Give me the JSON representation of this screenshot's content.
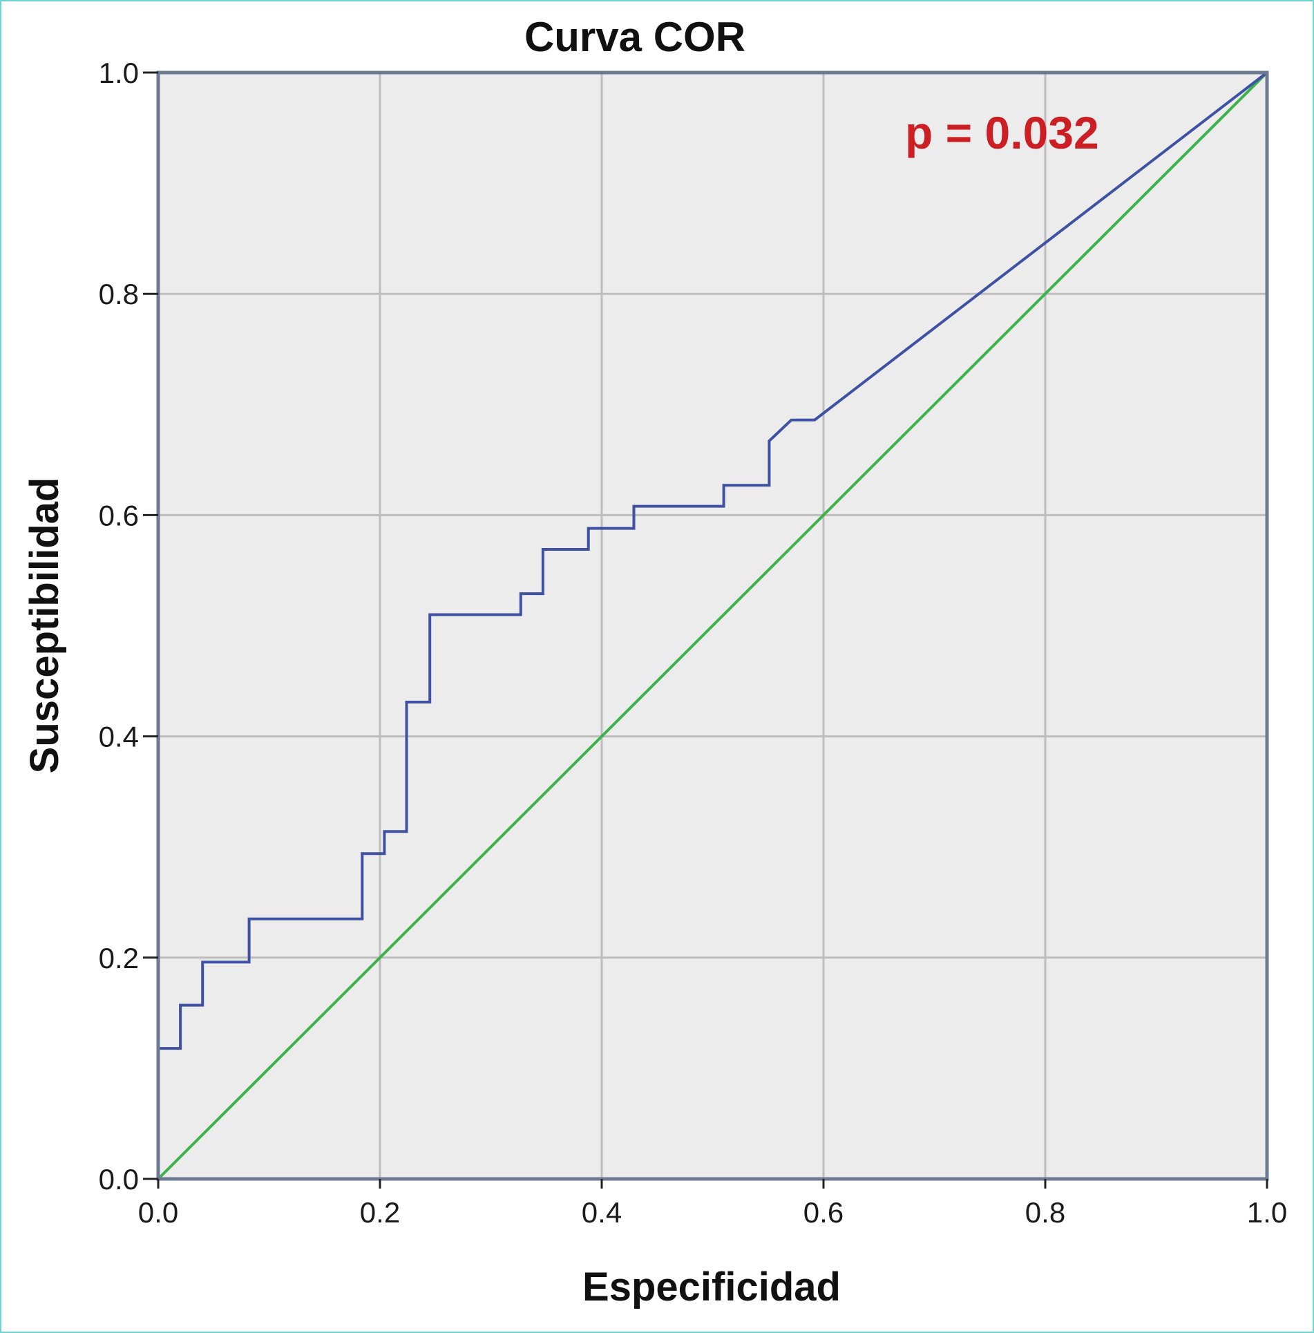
{
  "chart_data": {
    "type": "line",
    "title": "Curva COR",
    "xlabel": "Especificidad",
    "ylabel": "Susceptibilidad",
    "xlim": [
      0.0,
      1.0
    ],
    "ylim": [
      0.0,
      1.0
    ],
    "xticks": [
      "0.0",
      "0.2",
      "0.4",
      "0.6",
      "0.8",
      "1.0"
    ],
    "yticks": [
      "0.0",
      "0.2",
      "0.4",
      "0.6",
      "0.8",
      "1.0"
    ],
    "grid": true,
    "annotation": "p = 0.032",
    "series": [
      {
        "color": "#3f51a3",
        "style": "step",
        "points": [
          [
            0.0,
            0.0
          ],
          [
            0.0,
            0.118
          ],
          [
            0.02,
            0.118
          ],
          [
            0.02,
            0.157
          ],
          [
            0.04,
            0.157
          ],
          [
            0.04,
            0.196
          ],
          [
            0.082,
            0.196
          ],
          [
            0.082,
            0.235
          ],
          [
            0.184,
            0.235
          ],
          [
            0.184,
            0.294
          ],
          [
            0.204,
            0.294
          ],
          [
            0.204,
            0.314
          ],
          [
            0.224,
            0.314
          ],
          [
            0.224,
            0.431
          ],
          [
            0.245,
            0.431
          ],
          [
            0.245,
            0.51
          ],
          [
            0.327,
            0.51
          ],
          [
            0.327,
            0.529
          ],
          [
            0.347,
            0.529
          ],
          [
            0.347,
            0.569
          ],
          [
            0.388,
            0.569
          ],
          [
            0.388,
            0.588
          ],
          [
            0.429,
            0.588
          ],
          [
            0.429,
            0.608
          ],
          [
            0.51,
            0.608
          ],
          [
            0.51,
            0.627
          ],
          [
            0.551,
            0.627
          ],
          [
            0.551,
            0.667
          ],
          [
            0.571,
            0.686
          ],
          [
            0.592,
            0.686
          ],
          [
            1.0,
            1.0
          ]
        ]
      },
      {
        "color": "#3db24a",
        "style": "reference",
        "points": [
          [
            0.0,
            0.0
          ],
          [
            1.0,
            1.0
          ]
        ]
      }
    ]
  },
  "colors": {
    "plot_background": "#ececec",
    "grid": "#bdbdbd",
    "axis": "#6c7a92",
    "annotation": "#cc1f24"
  }
}
